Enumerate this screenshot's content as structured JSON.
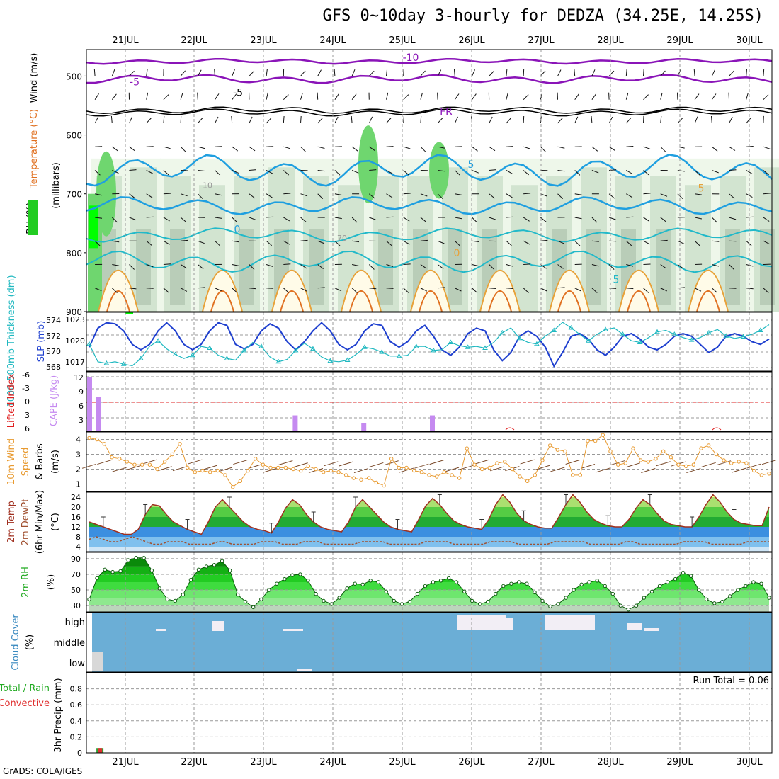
{
  "title": "GFS 0~10day 3-hourly for DEDZA (34.25E, 14.25S)",
  "footer": "GrADS: COLA/IGES",
  "colors": {
    "rh_fill": [
      "#eef7ea",
      "#d2e4d0",
      "#b9cdb8",
      "#6fd66f",
      "#22cc22",
      "#00ff00"
    ],
    "temp_cold": "#8a14b8",
    "temp_cool": "#1f9fe0",
    "temp_mild": "#22b9c9",
    "temp_warm": "#e8a23a",
    "temp_hot": "#e07020",
    "temp_max": "#e0207a",
    "slp": "#1e3fcf",
    "thickness": "#1fb8c0",
    "cape": "#c58af0",
    "lifted_index": "#e02020",
    "wind10m": "#e89a30",
    "barbs": "#7a4a2a",
    "temp_line": "#a03020",
    "dewpt_line": "#a05030",
    "cloud_bg": "#6baed6",
    "cloud_clear": "#f2eef5",
    "precip_conv": "#e03030",
    "precip_total": "#30a030"
  },
  "chart_data": {
    "type": "multi-panel meteogram",
    "x_ticks": [
      "21JUL",
      "22JUL",
      "23JUL",
      "24JUL",
      "25JUL",
      "26JUL",
      "27JUL",
      "28JUL",
      "29JUL",
      "30JUL"
    ],
    "panels": [
      {
        "id": "upper_air",
        "type": "heatmap",
        "ylabel_parts": [
          "Wind (m/s)",
          "Temperature (°C)",
          "RH (%)"
        ],
        "ylabel_unit": "(millibars)",
        "y_ticks": [
          500,
          600,
          700,
          800,
          900
        ],
        "ylim": [
          455,
          900
        ],
        "temperature_contours": [
          {
            "label": "-10",
            "level_mb": 468
          },
          {
            "label": "-5",
            "level_mb": 510
          },
          {
            "label": "FR",
            "level_mb": 560
          },
          {
            "label": "-5",
            "level_mb": 528
          },
          {
            "label": "5",
            "level_mb": 650
          },
          {
            "label": "0",
            "level_mb": 760
          },
          {
            "label": "5",
            "level_mb": 845
          },
          {
            "label": "0",
            "level_mb": 800
          },
          {
            "label": "5",
            "level_mb": 690
          }
        ],
        "rh_labels": [
          "10",
          "70"
        ]
      },
      {
        "id": "slp_thickness",
        "type": "line",
        "left_label": "1000-500mb Thickness (dm)",
        "right_label": "SLP (mb)",
        "left_ticks": [
          "574",
          "572",
          "570",
          "568"
        ],
        "right_ticks": [
          "1023",
          "1020",
          "1017"
        ],
        "series": [
          {
            "name": "SLP (mb)",
            "values": [
              1018.5,
              1022.0,
              1023.0,
              1022.8,
              1021.5,
              1019.0,
              1018.0,
              1019.0,
              1021.5,
              1023.0,
              1021.5,
              1019.0,
              1018.0,
              1019.0,
              1021.5,
              1023.0,
              1022.5,
              1019.0,
              1018.2,
              1019.0,
              1021.5,
              1022.8,
              1022.0,
              1019.5,
              1018.0,
              1019.5,
              1021.5,
              1023.0,
              1021.5,
              1019.0,
              1018.0,
              1019.0,
              1021.5,
              1022.8,
              1022.5,
              1019.5,
              1018.5,
              1019.5,
              1021.5,
              1022.5,
              1020.5,
              1018.0,
              1017.0,
              1018.5,
              1021.0,
              1022.0,
              1021.5,
              1018.0,
              1016.0,
              1017.5,
              1020.5,
              1021.5,
              1020.5,
              1018.5,
              1015.0,
              1017.5,
              1020.5,
              1021.0,
              1020.0,
              1018.0,
              1017.0,
              1018.5,
              1020.5,
              1021.0,
              1020.0,
              1018.5,
              1018.0,
              1019.0,
              1020.5,
              1021.0,
              1020.5,
              1019.0,
              1017.5,
              1018.5,
              1020.5,
              1021.0,
              1020.5,
              1019.5,
              1019.0,
              1020.0
            ]
          },
          {
            "name": "1000-500mb Thickness (dm)",
            "values": [
              570.8,
              568.6,
              568.4,
              568.6,
              568.3,
              568.1,
              569.0,
              570.5,
              571.2,
              570.2,
              569.5,
              569.0,
              569.4,
              570.5,
              570.3,
              569.4,
              569.0,
              568.8,
              570.0,
              571.0,
              570.5,
              569.2,
              568.6,
              568.9,
              570.0,
              570.9,
              570.2,
              569.2,
              568.7,
              568.6,
              568.8,
              569.5,
              570.4,
              570.2,
              569.8,
              569.3,
              569.3,
              569.4,
              570.5,
              570.5,
              570.0,
              570.1,
              571.0,
              570.6,
              570.4,
              570.5,
              570.3,
              571.0,
              572.2,
              572.8,
              571.5,
              571.0,
              570.8,
              571.8,
              572.5,
              573.5,
              572.8,
              572.0,
              571.2,
              572.0,
              572.6,
              572.8,
              572.0,
              571.2,
              571.0,
              571.6,
              572.3,
              572.5,
              572.0,
              571.6,
              571.3,
              571.6,
              572.2,
              572.6,
              571.8,
              571.5,
              571.7,
              572.0,
              572.5,
              573.2
            ]
          }
        ]
      },
      {
        "id": "cape_li",
        "type": "bar",
        "left_label": "Lifted Index",
        "right_label": "CAPE (J/kg)",
        "li_ticks": [
          "-6",
          "-3",
          "0",
          "3",
          "6"
        ],
        "cape_ticks": [
          "12",
          "9",
          "6",
          "3"
        ],
        "series": [
          {
            "name": "CAPE (J/kg)",
            "bars": [
              {
                "step": 0,
                "value": 12
              },
              {
                "step": 1,
                "value": 7.5
              },
              {
                "step": 24,
                "value": 3.5
              },
              {
                "step": 32,
                "value": 1.8
              },
              {
                "step": 40,
                "value": 3.5
              }
            ]
          }
        ]
      },
      {
        "id": "wind10m",
        "type": "line",
        "ylabel": "10m Wind Speed & Barbs (m/s)",
        "y_ticks": [
          "1",
          "2",
          "3",
          "4"
        ],
        "ylim": [
          0.5,
          4.5
        ],
        "series": [
          {
            "name": "10m Wind Speed",
            "values": [
              4.1,
              4.0,
              3.7,
              2.8,
              2.7,
              2.5,
              2.3,
              2.3,
              2.3,
              2.0,
              2.5,
              3.0,
              3.7,
              2.1,
              1.8,
              1.9,
              1.8,
              1.9,
              1.6,
              0.8,
              1.2,
              1.9,
              2.7,
              2.3,
              2.1,
              2.1,
              2.1,
              2.0,
              1.9,
              2.2,
              2.0,
              1.8,
              1.9,
              1.8,
              1.6,
              1.4,
              1.3,
              1.4,
              1.1,
              0.9,
              2.7,
              2.1,
              2.1,
              1.9,
              1.8,
              1.6,
              1.5,
              1.8,
              1.6,
              1.4,
              3.4,
              2.3,
              2.0,
              2.1,
              2.4,
              2.5,
              2.0,
              1.5,
              1.2,
              1.6,
              2.6,
              3.6,
              3.3,
              3.2,
              1.6,
              1.6,
              3.9,
              3.9,
              4.3,
              3.2,
              2.3,
              2.4,
              3.4,
              2.6,
              2.5,
              2.7,
              3.2,
              2.8,
              2.3,
              2.2,
              2.3,
              3.4,
              3.6,
              3.0,
              2.6,
              2.4,
              2.5,
              2.4,
              1.9,
              1.6,
              1.7
            ]
          }
        ]
      },
      {
        "id": "temp_dewpt",
        "type": "area",
        "ylabel": "2m Temp 2m DewPt (6hr Min/Max) (°C)",
        "y_ticks": [
          "4",
          "8",
          "12",
          "16",
          "20",
          "24"
        ],
        "ylim": [
          2,
          26
        ],
        "series": [
          {
            "name": "2m Temp",
            "values": [
              14,
              13,
              12,
              11,
              10,
              9,
              9,
              11,
              17,
              21,
              20.5,
              17,
              14,
              12.5,
              11,
              10,
              9,
              14,
              20,
              23,
              20,
              17,
              14,
              12,
              11,
              10.5,
              9.5,
              14,
              19.5,
              23,
              21,
              17,
              14,
              12,
              11,
              10.5,
              10,
              14,
              20,
              23,
              20,
              17,
              14,
              12,
              11,
              10.5,
              10,
              15,
              20.5,
              23.5,
              21,
              17.5,
              14.5,
              13,
              12,
              11.5,
              11,
              15,
              21,
              25,
              22,
              17.5,
              14.5,
              13,
              12,
              11.5,
              11.5,
              16,
              21,
              25,
              22,
              18,
              15,
              13.5,
              12.5,
              12,
              12,
              15,
              19.5,
              23,
              21,
              17.5,
              14.5,
              13,
              12.5,
              12,
              12,
              16,
              21,
              25,
              22,
              18,
              15,
              13.5,
              13,
              12.5,
              12.5,
              20
            ]
          },
          {
            "name": "2m DewPt",
            "values": [
              7,
              8,
              7,
              6,
              6,
              7,
              8,
              7,
              6,
              5,
              5,
              6,
              6,
              6,
              5,
              5,
              5,
              5,
              6,
              6,
              5,
              5,
              5,
              5,
              6,
              6,
              6,
              5,
              5,
              5,
              6,
              6,
              6,
              5,
              5,
              5,
              5,
              5,
              6,
              6,
              6,
              6,
              5,
              5,
              5,
              5,
              5,
              6,
              6,
              6,
              6,
              5,
              5,
              5,
              5,
              5,
              6,
              6,
              6,
              6,
              5,
              5,
              5,
              5,
              5,
              6,
              6,
              6,
              6,
              6,
              5,
              5,
              5,
              5,
              5,
              6,
              6,
              5,
              5,
              5,
              5,
              5,
              5,
              6,
              6,
              6,
              6,
              5,
              5,
              5,
              5,
              5,
              6,
              6,
              6,
              6
            ]
          }
        ]
      },
      {
        "id": "rh2m",
        "type": "area",
        "ylabel": "2m RH (%)",
        "y_ticks": [
          "30",
          "50",
          "70",
          "90"
        ],
        "ylim": [
          22,
          98
        ],
        "series": [
          {
            "name": "2m RH",
            "values": [
              38,
              65,
              76,
              73,
              74,
              88,
              91,
              91,
              75,
              52,
              38,
              36,
              44,
              63,
              76,
              80,
              82,
              87,
              75,
              44,
              35,
              28,
              38,
              50,
              58,
              64,
              69,
              70,
              62,
              45,
              36,
              32,
              40,
              52,
              58,
              57,
              62,
              60,
              48,
              36,
              32,
              35,
              45,
              55,
              60,
              62,
              65,
              60,
              48,
              36,
              32,
              35,
              45,
              55,
              58,
              60,
              58,
              47,
              36,
              29,
              32,
              40,
              50,
              57,
              60,
              62,
              55,
              45,
              30,
              25,
              30,
              40,
              48,
              55,
              60,
              64,
              72,
              68,
              50,
              38,
              33,
              35,
              42,
              50,
              55,
              60,
              58,
              40
            ]
          }
        ]
      },
      {
        "id": "cloud_cover",
        "type": "table",
        "ylabel": "Cloud Cover (%)",
        "layers": [
          "high",
          "middle",
          "low"
        ]
      },
      {
        "id": "precip",
        "type": "bar",
        "ylabel": "3hr Precip (mm)",
        "legend_left_1": "Total / Rain",
        "legend_left_2": "Convective",
        "y_ticks": [
          "0",
          "0.2",
          "0.4",
          "0.6",
          "0.8"
        ],
        "ylim": [
          0,
          1.0
        ],
        "run_total": "Run Total = 0.06",
        "series": [
          {
            "name": "Total / Rain",
            "bars": [
              {
                "step": 1,
                "value": 0.06
              }
            ]
          },
          {
            "name": "Convective",
            "bars": [
              {
                "step": 1,
                "value": 0.06
              }
            ]
          }
        ]
      }
    ]
  }
}
